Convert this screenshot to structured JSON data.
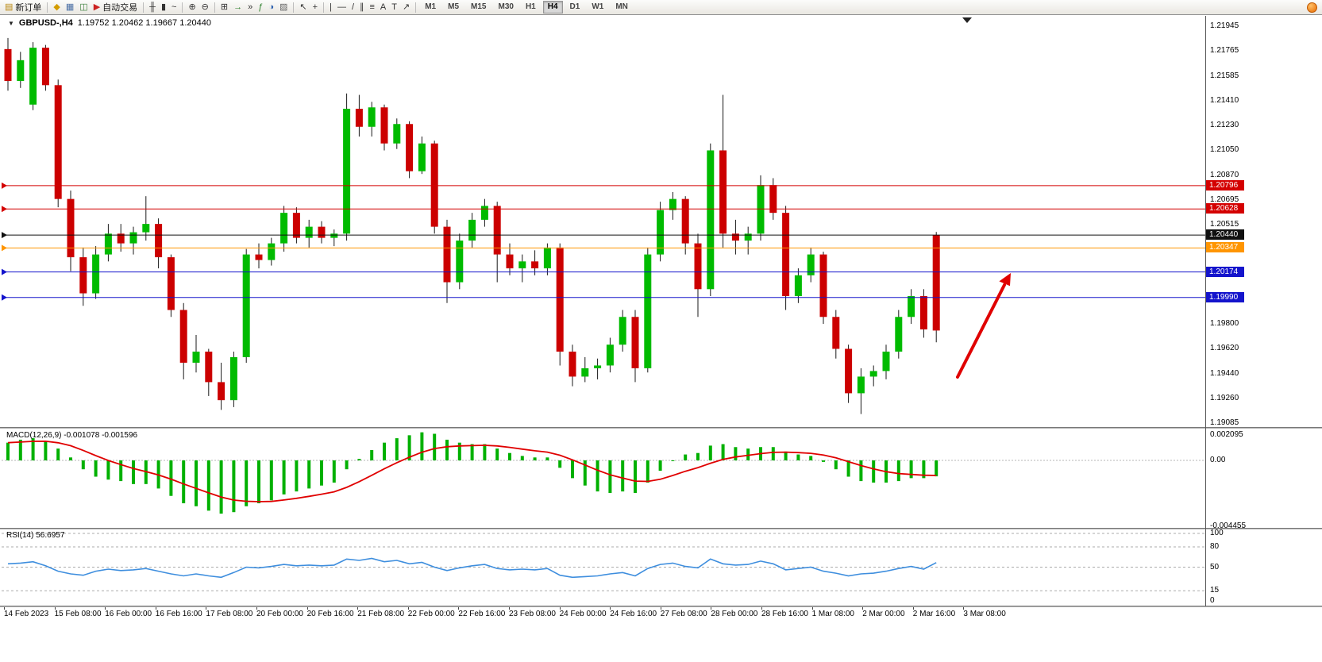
{
  "toolbar": {
    "buttons": [
      {
        "name": "new-order-button",
        "icon": "new-order-icon",
        "glyph": "▤",
        "glyph_color": "#b8860b",
        "label": "新订单"
      },
      {
        "sep": true
      },
      {
        "name": "new-chart-button",
        "icon": "new-chart-icon",
        "glyph": "◆",
        "glyph_color": "#d39c00"
      },
      {
        "name": "profiles-button",
        "icon": "profiles-icon",
        "glyph": "▦",
        "glyph_color": "#4a6fa5"
      },
      {
        "name": "data-window-button",
        "icon": "data-window-icon",
        "glyph": "◫",
        "glyph_color": "#3a7f3a"
      },
      {
        "name": "auto-trading-button",
        "icon": "auto-trading-icon",
        "glyph": "▶",
        "glyph_color": "#cc2222",
        "label": "自动交易"
      },
      {
        "sep": true
      },
      {
        "name": "bar-chart-type-button",
        "icon": "ohlc-bars-icon",
        "glyph": "╫",
        "glyph_color": "#333333"
      },
      {
        "name": "candlestick-type-button",
        "icon": "candlestick-icon",
        "glyph": "▮",
        "glyph_color": "#333333"
      },
      {
        "name": "line-chart-type-button",
        "icon": "line-chart-icon",
        "glyph": "~",
        "glyph_color": "#333333"
      },
      {
        "sep": true
      },
      {
        "name": "zoom-in-button",
        "icon": "zoom-in-icon",
        "glyph": "⊕",
        "glyph_color": "#333333"
      },
      {
        "name": "zoom-out-button",
        "icon": "zoom-out-icon",
        "glyph": "⊖",
        "glyph_color": "#333333"
      },
      {
        "sep": true
      },
      {
        "name": "tile-windows-button",
        "icon": "tile-windows-icon",
        "glyph": "⊞",
        "glyph_color": "#333333"
      },
      {
        "name": "auto-scroll-button",
        "icon": "auto-scroll-icon",
        "glyph": "→",
        "glyph_color": "#2a7f2a"
      },
      {
        "name": "chart-shift-button",
        "icon": "chart-shift-icon",
        "glyph": "»",
        "glyph_color": "#333333"
      },
      {
        "name": "indicators-button",
        "icon": "indicators-icon",
        "glyph": "ƒ",
        "glyph_color": "#2a7f2a"
      },
      {
        "name": "periods-button",
        "icon": "clock-icon",
        "glyph": "◑",
        "glyph_color": "#2a5fae"
      },
      {
        "name": "templates-button",
        "icon": "templates-icon",
        "glyph": "▨",
        "glyph_color": "#666666"
      },
      {
        "sep": true
      },
      {
        "name": "cursor-button",
        "icon": "cursor-arrow-icon",
        "glyph": "↖",
        "glyph_color": "#333333"
      },
      {
        "name": "crosshair-button",
        "icon": "crosshair-icon",
        "glyph": "+",
        "glyph_color": "#333333"
      },
      {
        "sep": true
      },
      {
        "name": "vertical-line-button",
        "icon": "vertical-line-icon",
        "glyph": "|",
        "glyph_color": "#333333"
      },
      {
        "name": "horizontal-line-button",
        "icon": "horizontal-line-icon",
        "glyph": "—",
        "glyph_color": "#333333"
      },
      {
        "name": "trendline-button",
        "icon": "trendline-icon",
        "glyph": "/",
        "glyph_color": "#333333"
      },
      {
        "name": "channel-button",
        "icon": "channel-icon",
        "glyph": "∥",
        "glyph_color": "#333333"
      },
      {
        "name": "fibonacci-button",
        "icon": "fibonacci-icon",
        "glyph": "≡",
        "glyph_color": "#333333"
      },
      {
        "name": "text-button",
        "icon": "text-icon",
        "glyph": "A",
        "glyph_color": "#333333"
      },
      {
        "name": "text-label-button",
        "icon": "text-label-icon",
        "glyph": "T",
        "glyph_color": "#333333"
      },
      {
        "name": "arrows-button",
        "icon": "arrow-tool-icon",
        "glyph": "↗",
        "glyph_color": "#333333"
      },
      {
        "sep": true
      }
    ],
    "timeframes": [
      "M1",
      "M5",
      "M15",
      "M30",
      "H1",
      "H4",
      "D1",
      "W1",
      "MN"
    ],
    "active_timeframe": "H4",
    "notification_icon": "notification-icon"
  },
  "chart": {
    "title_symbol": "GBPUSD-,H4",
    "title_ohlc": "1.19752 1.20462 1.19667 1.20440",
    "colors": {
      "up": "#00bb00",
      "down": "#cc0000",
      "wick": "#1a1a1a",
      "arrow": "#e00000"
    },
    "price_axis": {
      "max": 1.21945,
      "min": 1.19085,
      "ticks": [
        "1.21945",
        "1.21765",
        "1.21585",
        "1.21410",
        "1.21230",
        "1.21050",
        "1.20870",
        "1.20695",
        "1.20515",
        "1.19800",
        "1.19620",
        "1.19440",
        "1.19260",
        "1.19085"
      ]
    },
    "hlines": [
      {
        "price": 1.20796,
        "label": "1.20796",
        "color": "#d40000"
      },
      {
        "price": 1.20628,
        "label": "1.20628",
        "color": "#d40000"
      },
      {
        "price": 1.2044,
        "label": "1.20440",
        "color": "#111111"
      },
      {
        "price": 1.20347,
        "label": "1.20347",
        "color": "#ff9500"
      },
      {
        "price": 1.20174,
        "label": "1.20174",
        "color": "#1414cc"
      },
      {
        "price": 1.1999,
        "label": "1.19990",
        "color": "#1414cc"
      }
    ],
    "candles": [
      [
        1.2178,
        1.2186,
        1.2148,
        1.2155
      ],
      [
        1.2155,
        1.2176,
        1.215,
        1.217
      ],
      [
        1.2138,
        1.2183,
        1.2134,
        1.2179
      ],
      [
        1.2179,
        1.2181,
        1.2148,
        1.2152
      ],
      [
        1.2152,
        1.2156,
        1.2064,
        1.207
      ],
      [
        1.207,
        1.2076,
        1.2018,
        1.2028
      ],
      [
        1.2028,
        1.2035,
        1.1993,
        1.2002
      ],
      [
        1.2002,
        1.2036,
        1.1998,
        1.203
      ],
      [
        1.203,
        1.2052,
        1.2025,
        1.2045
      ],
      [
        1.2045,
        1.2052,
        1.2032,
        1.2038
      ],
      [
        1.2038,
        1.205,
        1.203,
        1.2046
      ],
      [
        1.2046,
        1.2072,
        1.204,
        1.2052
      ],
      [
        1.2052,
        1.2056,
        1.202,
        1.2028
      ],
      [
        1.2028,
        1.203,
        1.1985,
        1.199
      ],
      [
        1.199,
        1.1995,
        1.194,
        1.1952
      ],
      [
        1.1952,
        1.1972,
        1.1945,
        1.196
      ],
      [
        1.196,
        1.1962,
        1.1928,
        1.1938
      ],
      [
        1.1938,
        1.1952,
        1.1918,
        1.1925
      ],
      [
        1.1925,
        1.196,
        1.192,
        1.1956
      ],
      [
        1.1956,
        1.2034,
        1.1952,
        1.203
      ],
      [
        1.203,
        1.2038,
        1.202,
        1.2026
      ],
      [
        1.2026,
        1.2042,
        1.2022,
        1.2038
      ],
      [
        1.2038,
        1.2065,
        1.2032,
        1.206
      ],
      [
        1.206,
        1.2064,
        1.2038,
        1.2042
      ],
      [
        1.2042,
        1.2055,
        1.2035,
        1.205
      ],
      [
        1.205,
        1.2054,
        1.2038,
        1.2042
      ],
      [
        1.2042,
        1.2048,
        1.2036,
        1.2045
      ],
      [
        1.2045,
        1.2146,
        1.204,
        1.2135
      ],
      [
        1.2135,
        1.2145,
        1.2115,
        1.2122
      ],
      [
        1.2122,
        1.214,
        1.2115,
        1.2136
      ],
      [
        1.2136,
        1.2138,
        1.2105,
        1.211
      ],
      [
        1.211,
        1.2128,
        1.2106,
        1.2124
      ],
      [
        1.2124,
        1.2126,
        1.2085,
        1.209
      ],
      [
        1.209,
        1.2115,
        1.2088,
        1.211
      ],
      [
        1.211,
        1.2112,
        1.2045,
        1.205
      ],
      [
        1.205,
        1.2055,
        1.1995,
        1.201
      ],
      [
        1.201,
        1.2045,
        1.2005,
        1.204
      ],
      [
        1.204,
        1.206,
        1.2035,
        1.2055
      ],
      [
        1.2055,
        1.207,
        1.205,
        1.2065
      ],
      [
        1.2065,
        1.2068,
        1.201,
        1.203
      ],
      [
        1.203,
        1.2038,
        1.2015,
        1.202
      ],
      [
        1.202,
        1.203,
        1.201,
        1.2025
      ],
      [
        1.2025,
        1.2033,
        1.2015,
        1.202
      ],
      [
        1.202,
        1.2038,
        1.2015,
        1.2035
      ],
      [
        1.2035,
        1.2038,
        1.195,
        1.196
      ],
      [
        1.196,
        1.1965,
        1.1935,
        1.1942
      ],
      [
        1.1942,
        1.1956,
        1.1938,
        1.1948
      ],
      [
        1.1948,
        1.1955,
        1.194,
        1.195
      ],
      [
        1.195,
        1.197,
        1.1945,
        1.1965
      ],
      [
        1.1965,
        1.199,
        1.196,
        1.1985
      ],
      [
        1.1985,
        1.199,
        1.1938,
        1.1948
      ],
      [
        1.1948,
        1.2035,
        1.1945,
        1.203
      ],
      [
        1.203,
        1.2068,
        1.2025,
        1.2062
      ],
      [
        1.2062,
        1.2075,
        1.2055,
        1.207
      ],
      [
        1.207,
        1.2072,
        1.203,
        1.2038
      ],
      [
        1.2038,
        1.2045,
        1.1985,
        1.2005
      ],
      [
        1.2005,
        1.211,
        1.2,
        1.2105
      ],
      [
        1.2105,
        1.2145,
        1.2035,
        1.2045
      ],
      [
        1.2045,
        1.2055,
        1.203,
        1.204
      ],
      [
        1.204,
        1.205,
        1.203,
        1.2045
      ],
      [
        1.2045,
        1.2087,
        1.204,
        1.208
      ],
      [
        1.208,
        1.2085,
        1.2055,
        1.206
      ],
      [
        1.206,
        1.2065,
        1.199,
        1.2
      ],
      [
        1.2,
        1.202,
        1.1995,
        1.2015
      ],
      [
        1.2015,
        1.2035,
        1.201,
        1.203
      ],
      [
        1.203,
        1.2032,
        1.198,
        1.1985
      ],
      [
        1.1985,
        1.199,
        1.1955,
        1.1962
      ],
      [
        1.1962,
        1.1965,
        1.1923,
        1.193
      ],
      [
        1.193,
        1.1948,
        1.1915,
        1.1942
      ],
      [
        1.1942,
        1.195,
        1.1935,
        1.1946
      ],
      [
        1.1946,
        1.1965,
        1.194,
        1.196
      ],
      [
        1.196,
        1.199,
        1.1955,
        1.1985
      ],
      [
        1.1985,
        1.2005,
        1.198,
        1.2
      ],
      [
        1.2,
        1.2005,
        1.197,
        1.1976
      ],
      [
        1.19752,
        1.20462,
        1.19667,
        1.2044,
        "red"
      ]
    ]
  },
  "macd": {
    "label": "MACD(12,26,9) -0.001078 -0.001596",
    "axis": [
      "0.002095",
      "0.00",
      "-0.004455"
    ],
    "axis_values": [
      0.002095,
      0,
      -0.004455
    ],
    "range": {
      "max": 0.002095,
      "min": -0.004455
    },
    "histogram_color": "#00b000",
    "signal_color": "#e00000",
    "values": [
      0.0012,
      0.0014,
      0.0015,
      0.0013,
      0.0008,
      0.0002,
      -0.0006,
      -0.0011,
      -0.0013,
      -0.0014,
      -0.0016,
      -0.0016,
      -0.0019,
      -0.0024,
      -0.0029,
      -0.0031,
      -0.0034,
      -0.0036,
      -0.0035,
      -0.0031,
      -0.0029,
      -0.0027,
      -0.0023,
      -0.0021,
      -0.0019,
      -0.0017,
      -0.0015,
      -0.0006,
      0.0001,
      0.0007,
      0.0012,
      0.0015,
      0.0017,
      0.0019,
      0.0018,
      0.0014,
      0.0012,
      0.0011,
      0.0011,
      0.0008,
      0.0005,
      0.0003,
      0.0002,
      0.0002,
      -0.0005,
      -0.0012,
      -0.0017,
      -0.0021,
      -0.0022,
      -0.0021,
      -0.0022,
      -0.0015,
      -0.0007,
      0.0,
      0.0004,
      0.0005,
      0.001,
      0.0011,
      0.0009,
      0.0008,
      0.0009,
      0.0009,
      0.0006,
      0.0004,
      0.0003,
      -0.0001,
      -0.0006,
      -0.0011,
      -0.0014,
      -0.0015,
      -0.0015,
      -0.0014,
      -0.0012,
      -0.0012,
      -0.001078
    ]
  },
  "rsi": {
    "label": "RSI(14) 56.6957",
    "axis": [
      "100",
      "80",
      "50",
      "15",
      "0"
    ],
    "axis_values": [
      100,
      80,
      50,
      15,
      0
    ],
    "levels": [
      100,
      80,
      50,
      15
    ],
    "line_color": "#3e8ede",
    "values": [
      55,
      56,
      58,
      52,
      44,
      40,
      38,
      44,
      47,
      45,
      46,
      48,
      44,
      40,
      37,
      40,
      37,
      35,
      42,
      50,
      49,
      51,
      54,
      52,
      53,
      52,
      53,
      62,
      60,
      63,
      58,
      60,
      55,
      57,
      50,
      45,
      49,
      52,
      54,
      48,
      46,
      47,
      46,
      48,
      38,
      35,
      36,
      37,
      40,
      42,
      37,
      48,
      54,
      56,
      51,
      49,
      62,
      55,
      53,
      54,
      59,
      55,
      46,
      48,
      50,
      44,
      41,
      37,
      40,
      41,
      44,
      48,
      51,
      47,
      56.7
    ]
  },
  "time_axis": {
    "labels": [
      "14 Feb 2023",
      "15 Feb 08:00",
      "16 Feb 00:00",
      "16 Feb 16:00",
      "17 Feb 08:00",
      "20 Feb 00:00",
      "20 Feb 16:00",
      "21 Feb 08:00",
      "22 Feb 00:00",
      "22 Feb 16:00",
      "23 Feb 08:00",
      "24 Feb 00:00",
      "24 Feb 16:00",
      "27 Feb 08:00",
      "28 Feb 00:00",
      "28 Feb 16:00",
      "1 Mar 08:00",
      "2 Mar 00:00",
      "2 Mar 16:00",
      "3 Mar 08:00"
    ]
  }
}
